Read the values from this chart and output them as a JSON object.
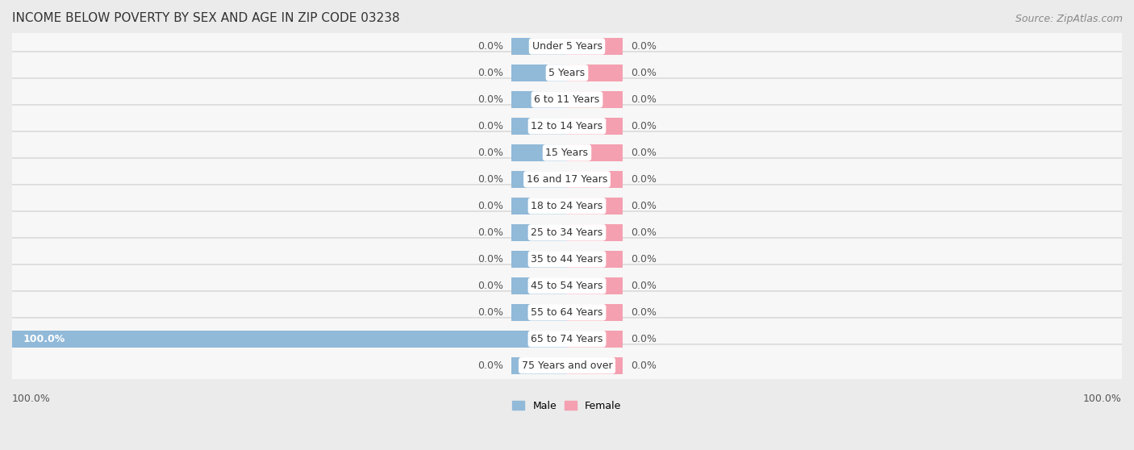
{
  "title": "INCOME BELOW POVERTY BY SEX AND AGE IN ZIP CODE 03238",
  "source": "Source: ZipAtlas.com",
  "categories": [
    "Under 5 Years",
    "5 Years",
    "6 to 11 Years",
    "12 to 14 Years",
    "15 Years",
    "16 and 17 Years",
    "18 to 24 Years",
    "25 to 34 Years",
    "35 to 44 Years",
    "45 to 54 Years",
    "55 to 64 Years",
    "65 to 74 Years",
    "75 Years and over"
  ],
  "male_values": [
    0.0,
    0.0,
    0.0,
    0.0,
    0.0,
    0.0,
    0.0,
    0.0,
    0.0,
    0.0,
    0.0,
    100.0,
    0.0
  ],
  "female_values": [
    0.0,
    0.0,
    0.0,
    0.0,
    0.0,
    0.0,
    0.0,
    0.0,
    0.0,
    0.0,
    0.0,
    0.0,
    0.0
  ],
  "male_color": "#91b9d8",
  "female_color": "#f4a0b0",
  "male_label": "Male",
  "female_label": "Female",
  "xlim": 100.0,
  "bg_color": "#ebebeb",
  "row_bg_color": "#f7f7f7",
  "bar_height": 0.62,
  "stub_size": 10.0,
  "title_fontsize": 11,
  "label_fontsize": 9,
  "value_fontsize": 9,
  "source_fontsize": 9
}
